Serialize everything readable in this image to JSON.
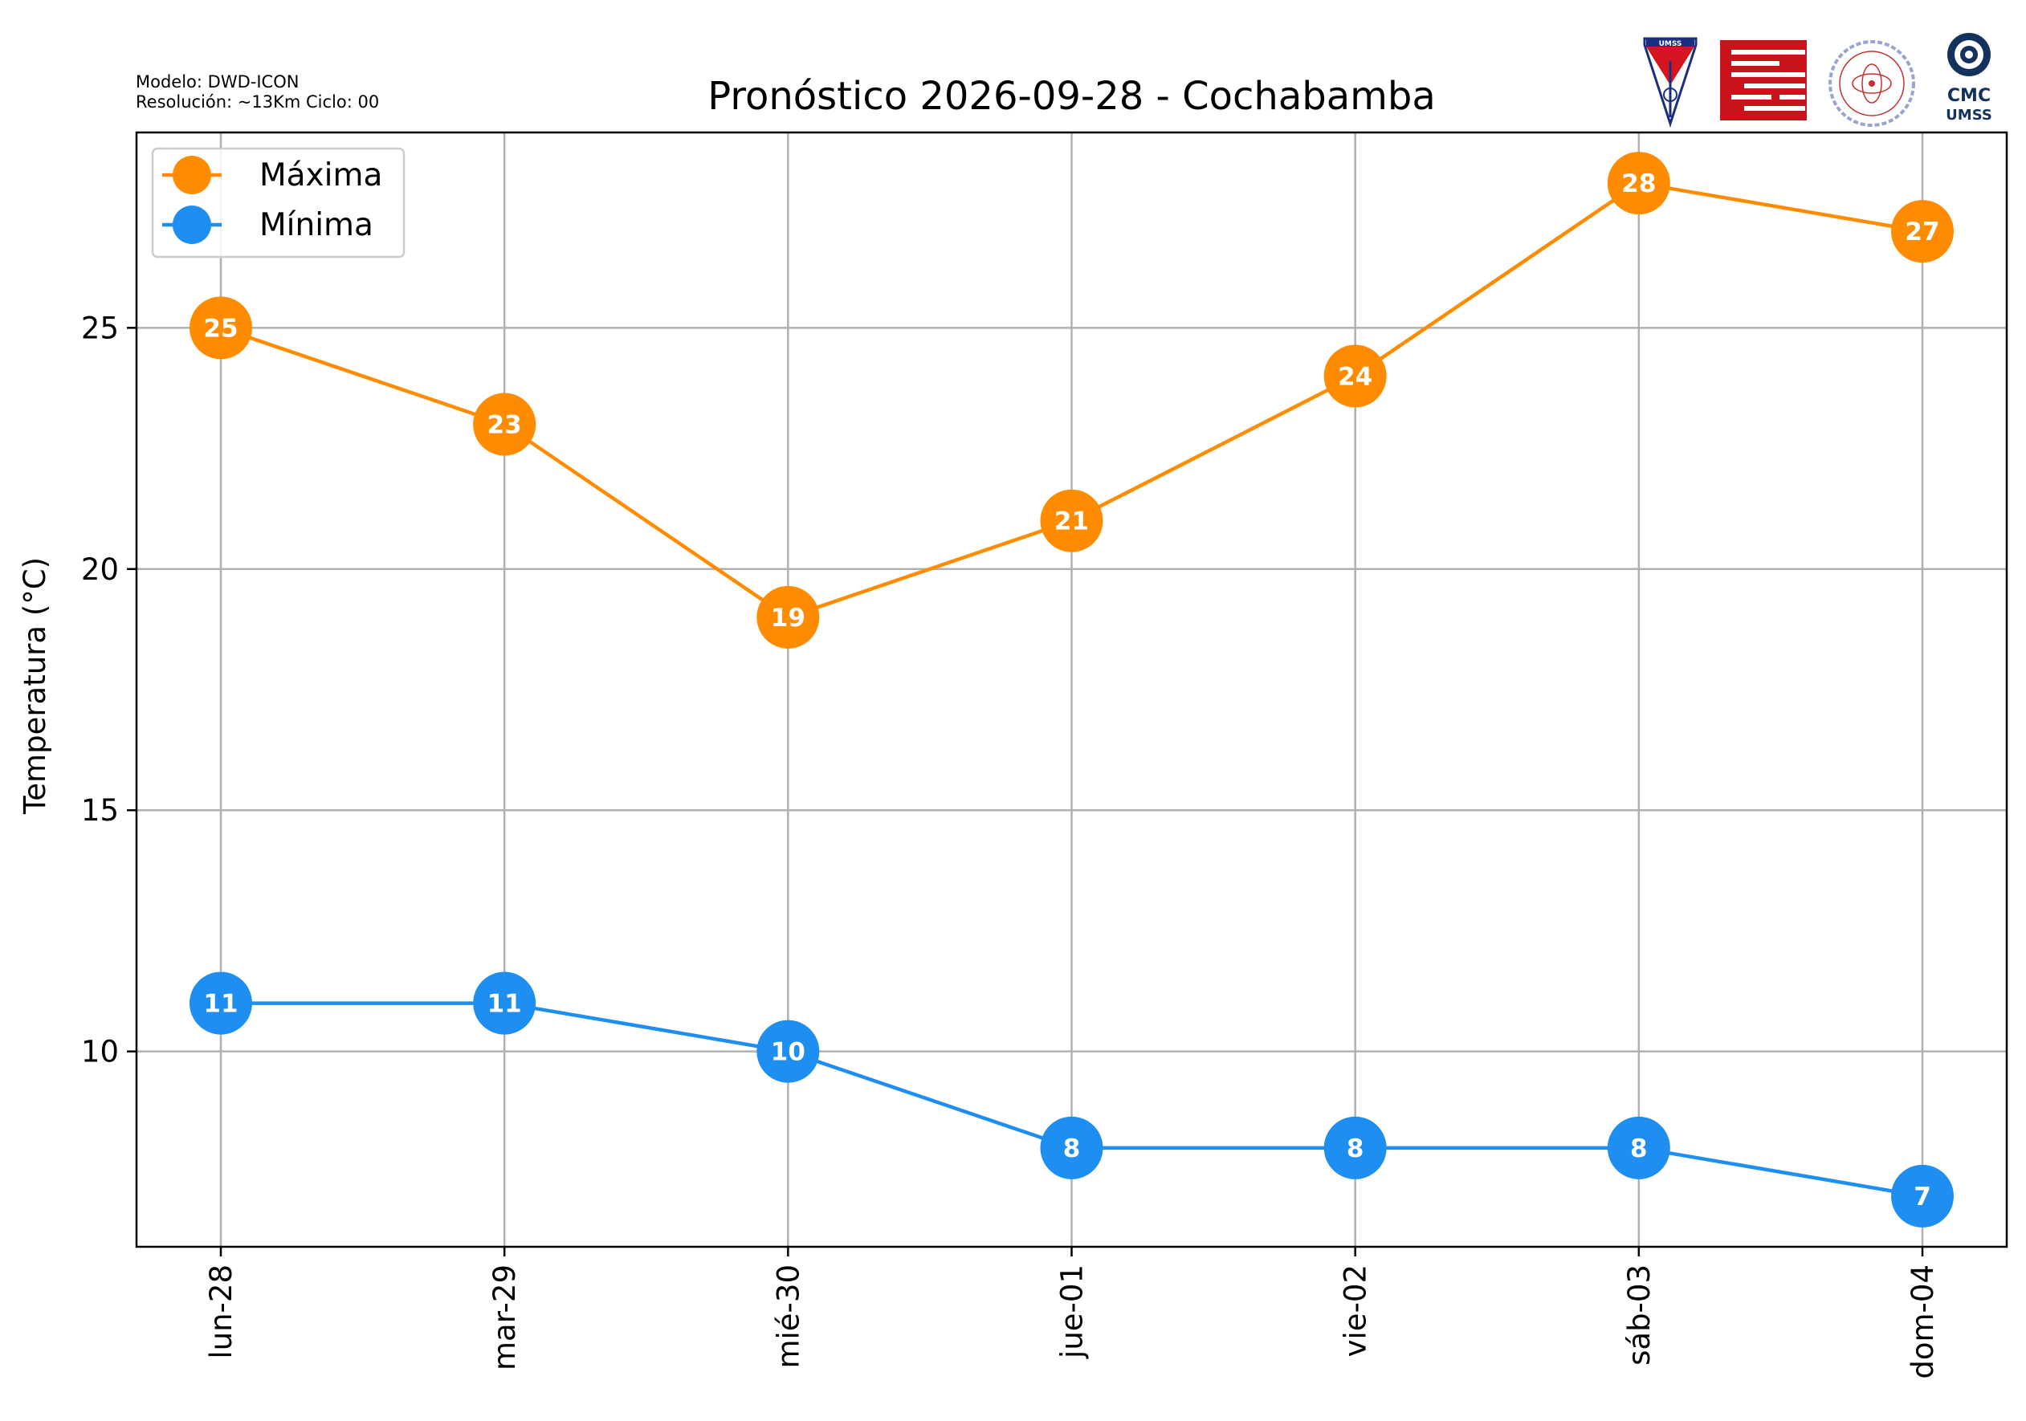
{
  "header": {
    "model": "Modelo: DWD-ICON",
    "resolution": "Resolución: ~13Km Ciclo: 00",
    "title": "Pronóstico 2026-09-28 - Cochabamba"
  },
  "logos": {
    "umss_label": "UMSS",
    "cmc_line1": "CMC",
    "cmc_line2": "UMSS",
    "fisica_ring": "DEPARTAMENTO DE FISICA"
  },
  "colors": {
    "max": "#ff8c00",
    "min": "#1e8ff0",
    "grid": "#b0b0b0"
  },
  "chart_data": {
    "type": "line",
    "title": "Pronóstico 2026-09-28 - Cochabamba",
    "xlabel": "",
    "ylabel": "Temperatura (°C)",
    "categories": [
      "lun-28",
      "mar-29",
      "mié-30",
      "jue-01",
      "vie-02",
      "sáb-03",
      "dom-04"
    ],
    "series": [
      {
        "name": "Máxima",
        "color": "#ff8c00",
        "values": [
          25,
          23,
          19,
          21,
          24,
          28,
          27
        ]
      },
      {
        "name": "Mínima",
        "color": "#1e8ff0",
        "values": [
          11,
          11,
          10,
          8,
          8,
          8,
          7
        ]
      }
    ],
    "yticks": [
      10,
      15,
      20,
      25
    ],
    "ylim": [
      5.95,
      29.05
    ],
    "grid": true,
    "legend": "top-left",
    "data_labels": true
  }
}
